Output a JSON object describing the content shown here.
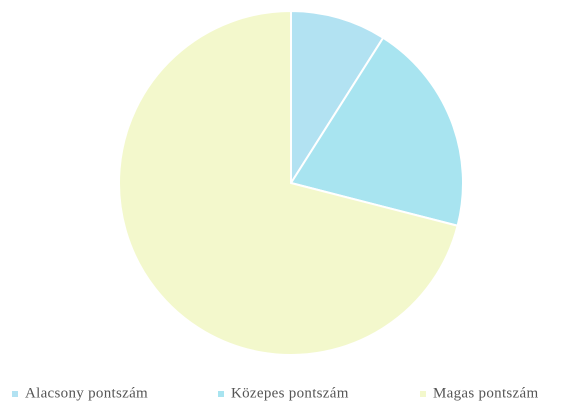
{
  "chart_data": {
    "type": "pie",
    "categories": [
      "Alacsony pontszám",
      "Közepes pontszám",
      "Magas pontszám"
    ],
    "values": [
      9,
      20,
      71
    ],
    "colors": [
      "#b2e2f2",
      "#a8e4f0",
      "#f3f8cc"
    ],
    "legend": "bottom"
  }
}
